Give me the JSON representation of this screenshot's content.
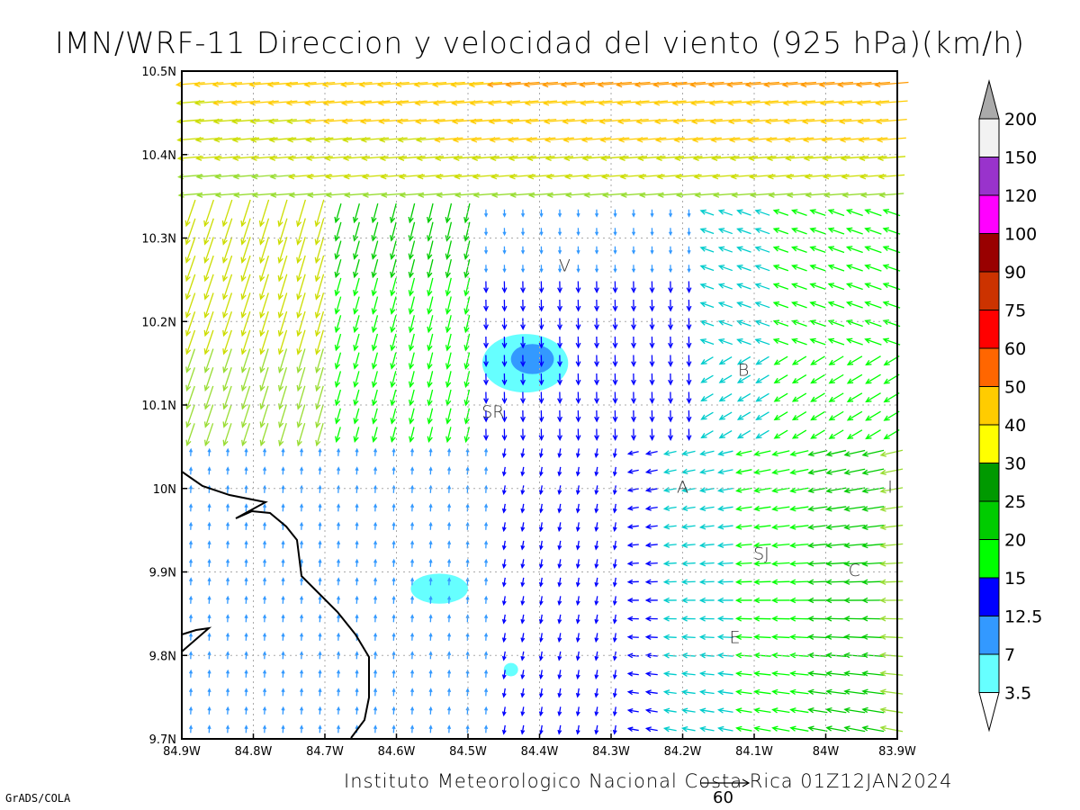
{
  "title": "IMN/WRF-11 Direccion y velocidad del viento (925 hPa)(km/h)",
  "footer": "Instituto Meteorologico Nacional Costa Rica 01Z12JAN2024",
  "software": "GrADS/COLA",
  "reference_vector_label": "60",
  "map": {
    "lon_range": [
      -84.9,
      -83.9
    ],
    "lat_range": [
      9.7,
      10.5
    ],
    "lon_ticks": [
      {
        "value": -84.9,
        "label": "84.9W"
      },
      {
        "value": -84.8,
        "label": "84.8W"
      },
      {
        "value": -84.7,
        "label": "84.7W"
      },
      {
        "value": -84.6,
        "label": "84.6W"
      },
      {
        "value": -84.5,
        "label": "84.5W"
      },
      {
        "value": -84.4,
        "label": "84.4W"
      },
      {
        "value": -84.3,
        "label": "84.3W"
      },
      {
        "value": -84.2,
        "label": "84.2W"
      },
      {
        "value": -84.1,
        "label": "84.1W"
      },
      {
        "value": -84.0,
        "label": "84W"
      },
      {
        "value": -83.9,
        "label": "83.9W"
      }
    ],
    "lat_ticks": [
      {
        "value": 9.7,
        "label": "9.7N"
      },
      {
        "value": 9.8,
        "label": "9.8N"
      },
      {
        "value": 9.9,
        "label": "9.9N"
      },
      {
        "value": 10.0,
        "label": "10N"
      },
      {
        "value": 10.1,
        "label": "10.1N"
      },
      {
        "value": 10.2,
        "label": "10.2N"
      },
      {
        "value": 10.3,
        "label": "10.3N"
      },
      {
        "value": 10.4,
        "label": "10.4N"
      },
      {
        "value": 10.5,
        "label": "10.5N"
      }
    ],
    "grid": true,
    "cities": [
      {
        "label": "V",
        "lon": -84.365,
        "lat": 10.26
      },
      {
        "label": "B",
        "lon": -84.115,
        "lat": 10.135
      },
      {
        "label": "SR",
        "lon": -84.465,
        "lat": 10.085
      },
      {
        "label": "A",
        "lon": -84.2,
        "lat": 9.995
      },
      {
        "label": "I",
        "lon": -83.91,
        "lat": 9.995
      },
      {
        "label": "SJ",
        "lon": -84.09,
        "lat": 9.915
      },
      {
        "label": "C",
        "lon": -83.96,
        "lat": 9.895
      },
      {
        "label": "E",
        "lon": -84.127,
        "lat": 9.815
      }
    ],
    "shaded_areas": [
      {
        "level": "3.5",
        "color": "#66ffff",
        "center": [
          -84.42,
          10.15
        ],
        "radius_deg": [
          0.06,
          0.035
        ]
      },
      {
        "level": "7",
        "color": "#3399ff",
        "center": [
          -84.41,
          10.155
        ],
        "radius_deg": [
          0.03,
          0.018
        ]
      },
      {
        "level": "3.5",
        "color": "#66ffff",
        "center": [
          -84.54,
          9.88
        ],
        "radius_deg": [
          0.04,
          0.018
        ]
      },
      {
        "level": "3.5",
        "color": "#66ffff",
        "center": [
          -84.44,
          9.783
        ],
        "radius_deg": [
          0.01,
          0.008
        ]
      }
    ]
  },
  "colorbar": {
    "levels": [
      "3.5",
      "7",
      "12.5",
      "15",
      "20",
      "25",
      "30",
      "40",
      "50",
      "60",
      "75",
      "90",
      "100",
      "120",
      "150",
      "200"
    ],
    "colors": [
      "#66ffff",
      "#3399ff",
      "#0000ff",
      "#00ff00",
      "#00cc00",
      "#009900",
      "#ffff00",
      "#ffcc00",
      "#ff6600",
      "#ff0000",
      "#cc3300",
      "#990000",
      "#ff00ff",
      "#9933cc",
      "#f2f2f2",
      "#aaaaaa"
    ]
  }
}
